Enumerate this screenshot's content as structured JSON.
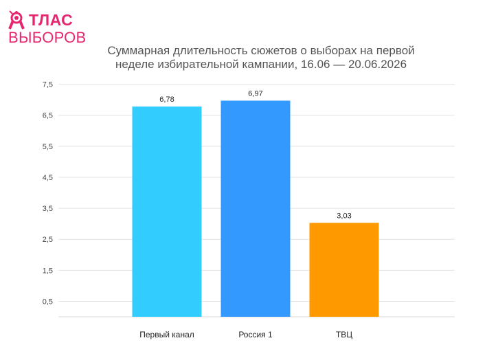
{
  "logo": {
    "line1": "ТЛАС",
    "line2": "ВЫБОРОВ",
    "accent": "#e6276f",
    "icon": "rocket-icon"
  },
  "title_line1": "Суммарная длительность сюжетов о выборах на первой",
  "title_line2": "неделе избирательной кампании, 16.06 — 20.06.2026",
  "chart_data": {
    "type": "bar",
    "title": "Суммарная длительность сюжетов о выборах на первой неделе избирательной кампании, 16.06 — 20.06.2026",
    "xlabel": "",
    "ylabel": "",
    "categories": [
      "Первый канал",
      "Россия 1",
      "ТВЦ"
    ],
    "values": [
      6.78,
      6.97,
      3.03
    ],
    "value_labels": [
      "6,78",
      "6,97",
      "3,03"
    ],
    "colors": [
      "#33ccff",
      "#3399ff",
      "#ff9900"
    ],
    "ylim": [
      0,
      8
    ],
    "yticks": [
      0.5,
      1.5,
      2.5,
      3.5,
      4.5,
      5.5,
      6.5,
      7.5
    ],
    "ytick_labels": [
      "0,5",
      "1,5",
      "2,5",
      "3,5",
      "4,5",
      "5,5",
      "6,5",
      "7,5"
    ],
    "grid": true,
    "legend": "none"
  }
}
